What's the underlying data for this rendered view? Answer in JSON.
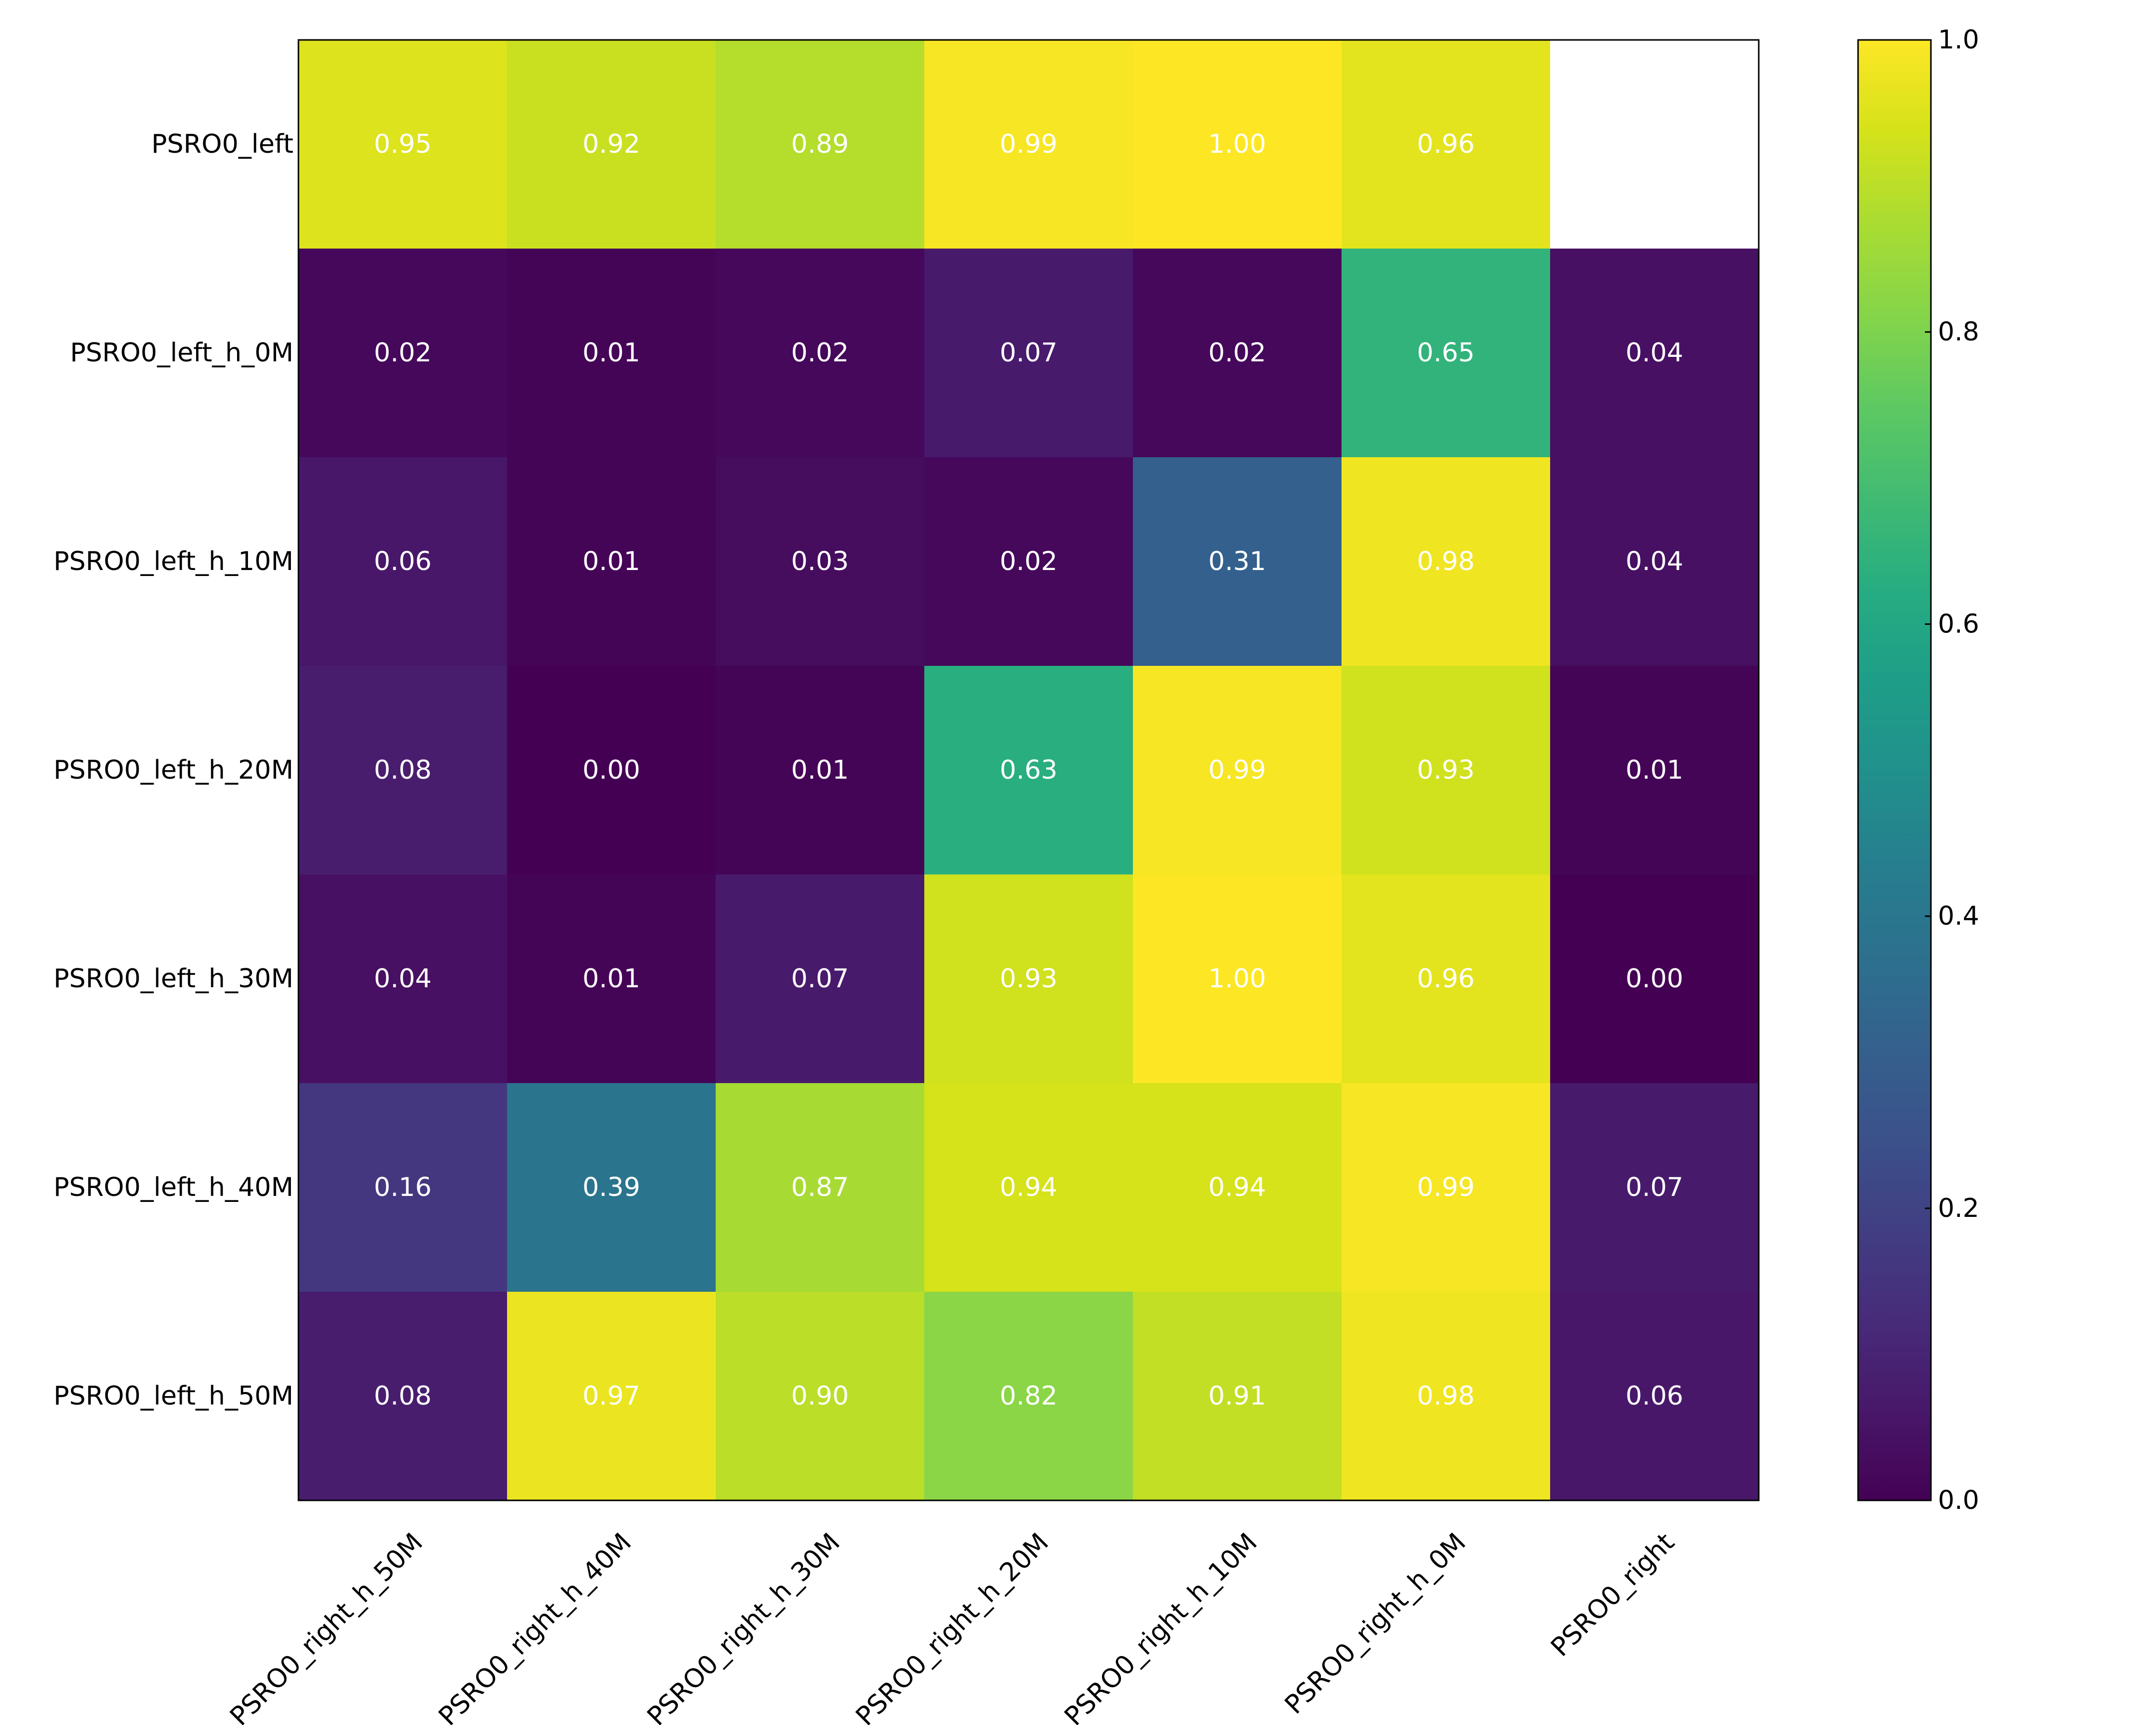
{
  "chart_data": {
    "type": "heatmap",
    "title": "",
    "xlabel": "",
    "ylabel": "",
    "x_categories": [
      "PSRO0_right_h_50M",
      "PSRO0_right_h_40M",
      "PSRO0_right_h_30M",
      "PSRO0_right_h_20M",
      "PSRO0_right_h_10M",
      "PSRO0_right_h_0M",
      "PSRO0_right"
    ],
    "y_categories": [
      "PSRO0_left",
      "PSRO0_left_h_0M",
      "PSRO0_left_h_10M",
      "PSRO0_left_h_20M",
      "PSRO0_left_h_30M",
      "PSRO0_left_h_40M",
      "PSRO0_left_h_50M"
    ],
    "values": [
      [
        0.95,
        0.92,
        0.89,
        0.99,
        1.0,
        0.96,
        null
      ],
      [
        0.02,
        0.01,
        0.02,
        0.07,
        0.02,
        0.65,
        0.04
      ],
      [
        0.06,
        0.01,
        0.03,
        0.02,
        0.31,
        0.98,
        0.04
      ],
      [
        0.08,
        0.0,
        0.01,
        0.63,
        0.99,
        0.93,
        0.01
      ],
      [
        0.04,
        0.01,
        0.07,
        0.93,
        1.0,
        0.96,
        0.0
      ],
      [
        0.16,
        0.39,
        0.87,
        0.94,
        0.94,
        0.99,
        0.07
      ],
      [
        0.08,
        0.97,
        0.9,
        0.82,
        0.91,
        0.98,
        0.06
      ]
    ],
    "cell_labels": [
      [
        "0.95",
        "0.92",
        "0.89",
        "0.99",
        "1.00",
        "0.96",
        ""
      ],
      [
        "0.02",
        "0.01",
        "0.02",
        "0.07",
        "0.02",
        "0.65",
        "0.04"
      ],
      [
        "0.06",
        "0.01",
        "0.03",
        "0.02",
        "0.31",
        "0.98",
        "0.04"
      ],
      [
        "0.08",
        "0.00",
        "0.01",
        "0.63",
        "0.99",
        "0.93",
        "0.01"
      ],
      [
        "0.04",
        "0.01",
        "0.07",
        "0.93",
        "1.00",
        "0.96",
        "0.00"
      ],
      [
        "0.16",
        "0.39",
        "0.87",
        "0.94",
        "0.94",
        "0.99",
        "0.07"
      ],
      [
        "0.08",
        "0.97",
        "0.90",
        "0.82",
        "0.91",
        "0.98",
        "0.06"
      ]
    ],
    "colormap": "viridis",
    "vmin": 0.0,
    "vmax": 1.0,
    "colorbar": {
      "ticks": [
        0.0,
        0.2,
        0.4,
        0.6,
        0.8,
        1.0
      ],
      "tick_labels": [
        "0.0",
        "0.2",
        "0.4",
        "0.6",
        "0.8",
        "1.0"
      ],
      "placement": "right"
    },
    "missing_cell_color": "#ffffff",
    "cell_label_color": "#ffffff",
    "grid": false
  }
}
